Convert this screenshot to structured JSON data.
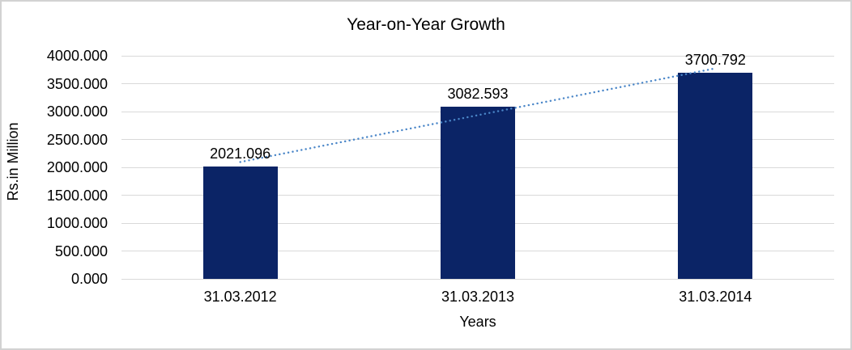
{
  "chart_data": {
    "type": "bar",
    "title": "Year-on-Year Growth",
    "xlabel": "Years",
    "ylabel": "Rs.in Million",
    "categories": [
      "31.03.2012",
      "31.03.2013",
      "31.03.2014"
    ],
    "values": [
      2021.096,
      3082.593,
      3700.792
    ],
    "data_labels": [
      "2021.096",
      "3082.593",
      "3700.792"
    ],
    "ylim": [
      0,
      4000
    ],
    "y_tick_step": 500,
    "y_tick_labels": [
      "0.000",
      "500.000",
      "1000.000",
      "1500.000",
      "2000.000",
      "2500.000",
      "3000.000",
      "3500.000",
      "4000.000"
    ],
    "grid": true,
    "legend": "none",
    "colors": {
      "bar_fill": "#0b2466",
      "trendline": "#4a86c8",
      "gridline": "#d9d9d9",
      "text": "#000000",
      "frame_border": "#d2d2d2"
    },
    "trendline": {
      "type": "linear",
      "style": "dotted",
      "fit_values_at_categories": [
        2094.98,
        2934.83,
        3774.65
      ]
    }
  }
}
